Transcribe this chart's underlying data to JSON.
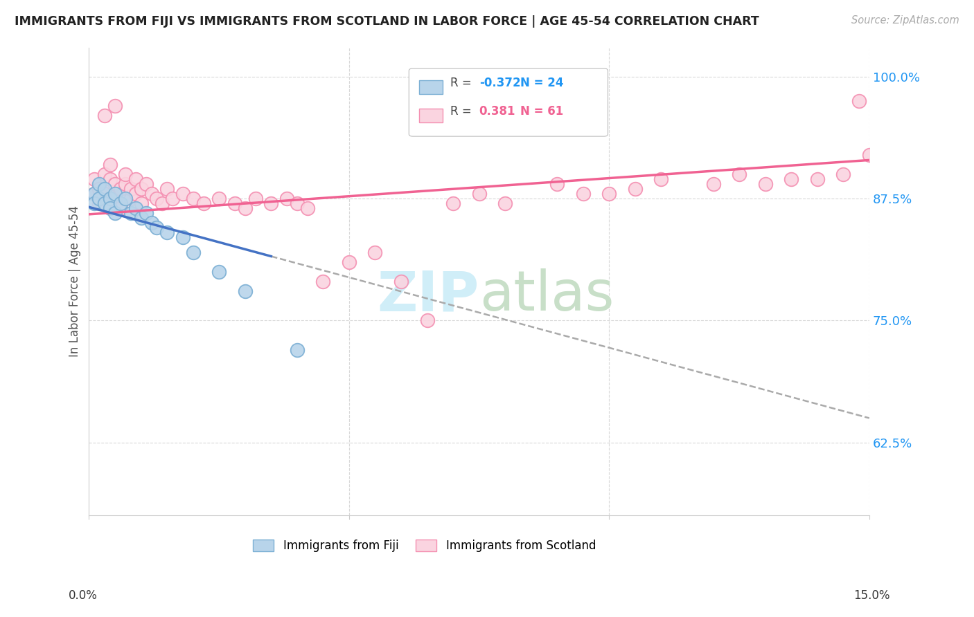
{
  "title": "IMMIGRANTS FROM FIJI VS IMMIGRANTS FROM SCOTLAND IN LABOR FORCE | AGE 45-54 CORRELATION CHART",
  "source": "Source: ZipAtlas.com",
  "ylabel": "In Labor Force | Age 45-54",
  "y_tick_labels": [
    "100.0%",
    "87.5%",
    "75.0%",
    "62.5%"
  ],
  "y_tick_values": [
    1.0,
    0.875,
    0.75,
    0.625
  ],
  "x_min": 0.0,
  "x_max": 0.15,
  "y_min": 0.55,
  "y_max": 1.03,
  "fiji_color": "#7bafd4",
  "fiji_color_fill": "#b8d4ea",
  "scotland_color": "#f48fb1",
  "scotland_color_fill": "#fad4e0",
  "fiji_R": -0.372,
  "fiji_N": 24,
  "scotland_R": 0.381,
  "scotland_N": 61,
  "background_color": "#ffffff",
  "grid_color": "#d8d8d8",
  "trendline_fiji_color": "#4472c4",
  "trendline_scotland_color": "#f06292",
  "trendline_dashed_color": "#aaaaaa",
  "watermark_color": "#d0eef8",
  "fiji_legend_label": "Immigrants from Fiji",
  "scotland_legend_label": "Immigrants from Scotland"
}
